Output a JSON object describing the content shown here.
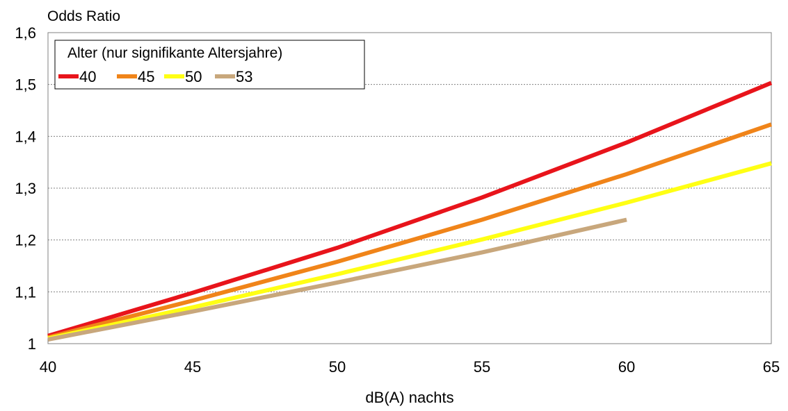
{
  "chart_data": {
    "type": "line",
    "ylabel": "Odds Ratio",
    "xlabel": "dB(A) nachts",
    "xlim": [
      40,
      65
    ],
    "ylim": [
      1.0,
      1.6
    ],
    "x_ticks": [
      40,
      45,
      50,
      55,
      60,
      65
    ],
    "y_ticks": [
      1.0,
      1.1,
      1.2,
      1.3,
      1.4,
      1.5,
      1.6
    ],
    "x_tick_labels": [
      "40",
      "45",
      "50",
      "55",
      "60",
      "65"
    ],
    "y_tick_labels": [
      "1",
      "1,1",
      "1,2",
      "1,3",
      "1,4",
      "1,5",
      "1,6"
    ],
    "grid": "horizontal-dotted",
    "legend": {
      "title": "Alter (nur signifikante Altersjahre)",
      "placement": "top-left"
    },
    "series": [
      {
        "name": "40",
        "color": "#e8141b",
        "x": [
          40,
          45,
          50,
          55,
          60,
          65
        ],
        "y": [
          1.015,
          1.098,
          1.185,
          1.282,
          1.388,
          1.503
        ]
      },
      {
        "name": "45",
        "color": "#f08419",
        "x": [
          40,
          45,
          50,
          55,
          60,
          65
        ],
        "y": [
          1.012,
          1.083,
          1.158,
          1.239,
          1.327,
          1.423
        ]
      },
      {
        "name": "50",
        "color": "#ffff14",
        "x": [
          40,
          45,
          50,
          55,
          60,
          65
        ],
        "y": [
          1.01,
          1.07,
          1.134,
          1.201,
          1.272,
          1.348
        ]
      },
      {
        "name": "53",
        "color": "#c8a77c",
        "x": [
          40,
          45,
          50,
          55,
          60
        ],
        "y": [
          1.008,
          1.062,
          1.118,
          1.176,
          1.239
        ]
      }
    ]
  }
}
